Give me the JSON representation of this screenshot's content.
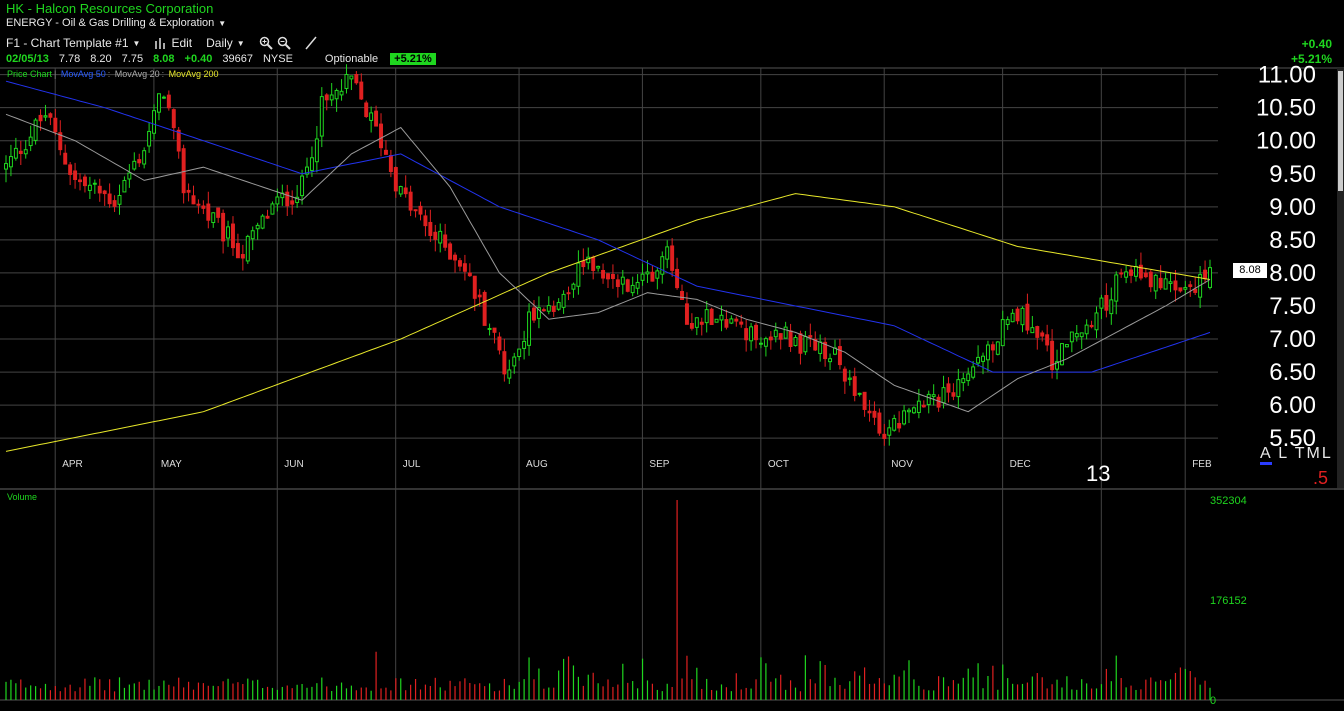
{
  "header": {
    "title": "HK - Halcon Resources Corporation",
    "sector": "ENERGY - Oil & Gas Drilling & Exploration"
  },
  "toolbar": {
    "template": "F1 - Chart Template #1",
    "edit": "Edit",
    "interval": "Daily"
  },
  "quote": {
    "date": "02/05/13",
    "open": "7.78",
    "high": "8.20",
    "low": "7.75",
    "last": "8.08",
    "change": "+0.40",
    "volume": "39667",
    "exchange": "NYSE",
    "optionable": "Optionable",
    "change_pct": "+5.21%"
  },
  "change_panel": {
    "abs": "+0.40",
    "pct": "+5.21%"
  },
  "legend": {
    "price": "Price Chart",
    "ma50": "MovAvg 50",
    "ma20": "MovAvg 20",
    "ma200": "MovAvg 200"
  },
  "volume_panel": {
    "label": "Volume"
  },
  "price_tag": "8.08",
  "year_label": "13",
  "alt_tabs": {
    "a": "A",
    "rest": "L TML"
  },
  "red_marker": ".5",
  "colors": {
    "up": "#1fd61f",
    "down": "#e02020",
    "ma50": "#2233ee",
    "ma20": "#9a9a9a",
    "ma200": "#e8e82a",
    "grid": "#444444"
  },
  "chart_data": {
    "type": "candlestick",
    "title": "HK - Halcon Resources Corporation",
    "price_axis": {
      "ticks": [
        "11.00",
        "10.50",
        "10.00",
        "9.50",
        "9.00",
        "8.50",
        "8.00",
        "7.50",
        "7.00",
        "6.50",
        "6.00",
        "5.50"
      ],
      "ylim": [
        5.2,
        11.1
      ]
    },
    "volume_axis": {
      "ticks": [
        "352304",
        "176152",
        "0"
      ],
      "ylim": [
        0,
        352304
      ]
    },
    "months": [
      "APR",
      "MAY",
      "JUN",
      "JUL",
      "AUG",
      "SEP",
      "OCT",
      "NOV",
      "DEC",
      "FEB"
    ],
    "price_anchors": [
      {
        "i": 0,
        "p": 9.6
      },
      {
        "i": 8,
        "p": 10.4
      },
      {
        "i": 14,
        "p": 9.4
      },
      {
        "i": 22,
        "p": 9.1
      },
      {
        "i": 28,
        "p": 9.9
      },
      {
        "i": 32,
        "p": 10.8
      },
      {
        "i": 36,
        "p": 9.3
      },
      {
        "i": 44,
        "p": 8.6
      },
      {
        "i": 48,
        "p": 8.3
      },
      {
        "i": 54,
        "p": 9.0
      },
      {
        "i": 60,
        "p": 9.3
      },
      {
        "i": 64,
        "p": 10.5
      },
      {
        "i": 70,
        "p": 10.9
      },
      {
        "i": 76,
        "p": 10.0
      },
      {
        "i": 80,
        "p": 9.2
      },
      {
        "i": 86,
        "p": 8.6
      },
      {
        "i": 92,
        "p": 8.2
      },
      {
        "i": 98,
        "p": 7.2
      },
      {
        "i": 102,
        "p": 6.4
      },
      {
        "i": 106,
        "p": 7.3
      },
      {
        "i": 112,
        "p": 7.4
      },
      {
        "i": 116,
        "p": 8.2
      },
      {
        "i": 122,
        "p": 7.9
      },
      {
        "i": 128,
        "p": 7.7
      },
      {
        "i": 134,
        "p": 8.4
      },
      {
        "i": 138,
        "p": 7.3
      },
      {
        "i": 144,
        "p": 7.4
      },
      {
        "i": 150,
        "p": 7.0
      },
      {
        "i": 156,
        "p": 7.1
      },
      {
        "i": 162,
        "p": 6.9
      },
      {
        "i": 168,
        "p": 6.7
      },
      {
        "i": 174,
        "p": 6.1
      },
      {
        "i": 178,
        "p": 5.6
      },
      {
        "i": 184,
        "p": 5.9
      },
      {
        "i": 190,
        "p": 6.1
      },
      {
        "i": 196,
        "p": 6.6
      },
      {
        "i": 202,
        "p": 7.2
      },
      {
        "i": 206,
        "p": 7.4
      },
      {
        "i": 212,
        "p": 6.7
      },
      {
        "i": 218,
        "p": 7.1
      },
      {
        "i": 224,
        "p": 7.7
      },
      {
        "i": 228,
        "p": 8.1
      },
      {
        "i": 234,
        "p": 7.8
      },
      {
        "i": 240,
        "p": 7.7
      },
      {
        "i": 244,
        "p": 8.08
      }
    ],
    "ma_anchors": {
      "ma200": [
        {
          "i": 0,
          "p": 5.3
        },
        {
          "i": 40,
          "p": 5.9
        },
        {
          "i": 80,
          "p": 7.0
        },
        {
          "i": 110,
          "p": 8.0
        },
        {
          "i": 140,
          "p": 8.8
        },
        {
          "i": 160,
          "p": 9.2
        },
        {
          "i": 180,
          "p": 9.0
        },
        {
          "i": 205,
          "p": 8.4
        },
        {
          "i": 244,
          "p": 7.9
        }
      ],
      "ma50": [
        {
          "i": 0,
          "p": 10.9
        },
        {
          "i": 20,
          "p": 10.5
        },
        {
          "i": 40,
          "p": 10.0
        },
        {
          "i": 60,
          "p": 9.5
        },
        {
          "i": 80,
          "p": 9.8
        },
        {
          "i": 100,
          "p": 9.0
        },
        {
          "i": 120,
          "p": 8.5
        },
        {
          "i": 140,
          "p": 7.8
        },
        {
          "i": 160,
          "p": 7.5
        },
        {
          "i": 180,
          "p": 7.2
        },
        {
          "i": 200,
          "p": 6.5
        },
        {
          "i": 220,
          "p": 6.5
        },
        {
          "i": 244,
          "p": 7.1
        }
      ],
      "ma20": [
        {
          "i": 0,
          "p": 10.4
        },
        {
          "i": 14,
          "p": 10.0
        },
        {
          "i": 28,
          "p": 9.4
        },
        {
          "i": 40,
          "p": 9.6
        },
        {
          "i": 52,
          "p": 9.3
        },
        {
          "i": 60,
          "p": 9.1
        },
        {
          "i": 70,
          "p": 9.8
        },
        {
          "i": 80,
          "p": 10.2
        },
        {
          "i": 90,
          "p": 9.3
        },
        {
          "i": 100,
          "p": 8.0
        },
        {
          "i": 110,
          "p": 7.3
        },
        {
          "i": 120,
          "p": 7.4
        },
        {
          "i": 130,
          "p": 7.7
        },
        {
          "i": 140,
          "p": 7.6
        },
        {
          "i": 150,
          "p": 7.3
        },
        {
          "i": 160,
          "p": 7.1
        },
        {
          "i": 170,
          "p": 6.8
        },
        {
          "i": 180,
          "p": 6.3
        },
        {
          "i": 195,
          "p": 5.9
        },
        {
          "i": 205,
          "p": 6.4
        },
        {
          "i": 215,
          "p": 6.7
        },
        {
          "i": 225,
          "p": 7.1
        },
        {
          "i": 235,
          "p": 7.5
        },
        {
          "i": 244,
          "p": 7.9
        }
      ]
    },
    "volume_spikes": [
      {
        "i": 136,
        "v": 352304
      },
      {
        "i": 75,
        "v": 85000
      },
      {
        "i": 106,
        "v": 75000
      },
      {
        "i": 183,
        "v": 70000
      },
      {
        "i": 138,
        "v": 78000
      }
    ]
  }
}
